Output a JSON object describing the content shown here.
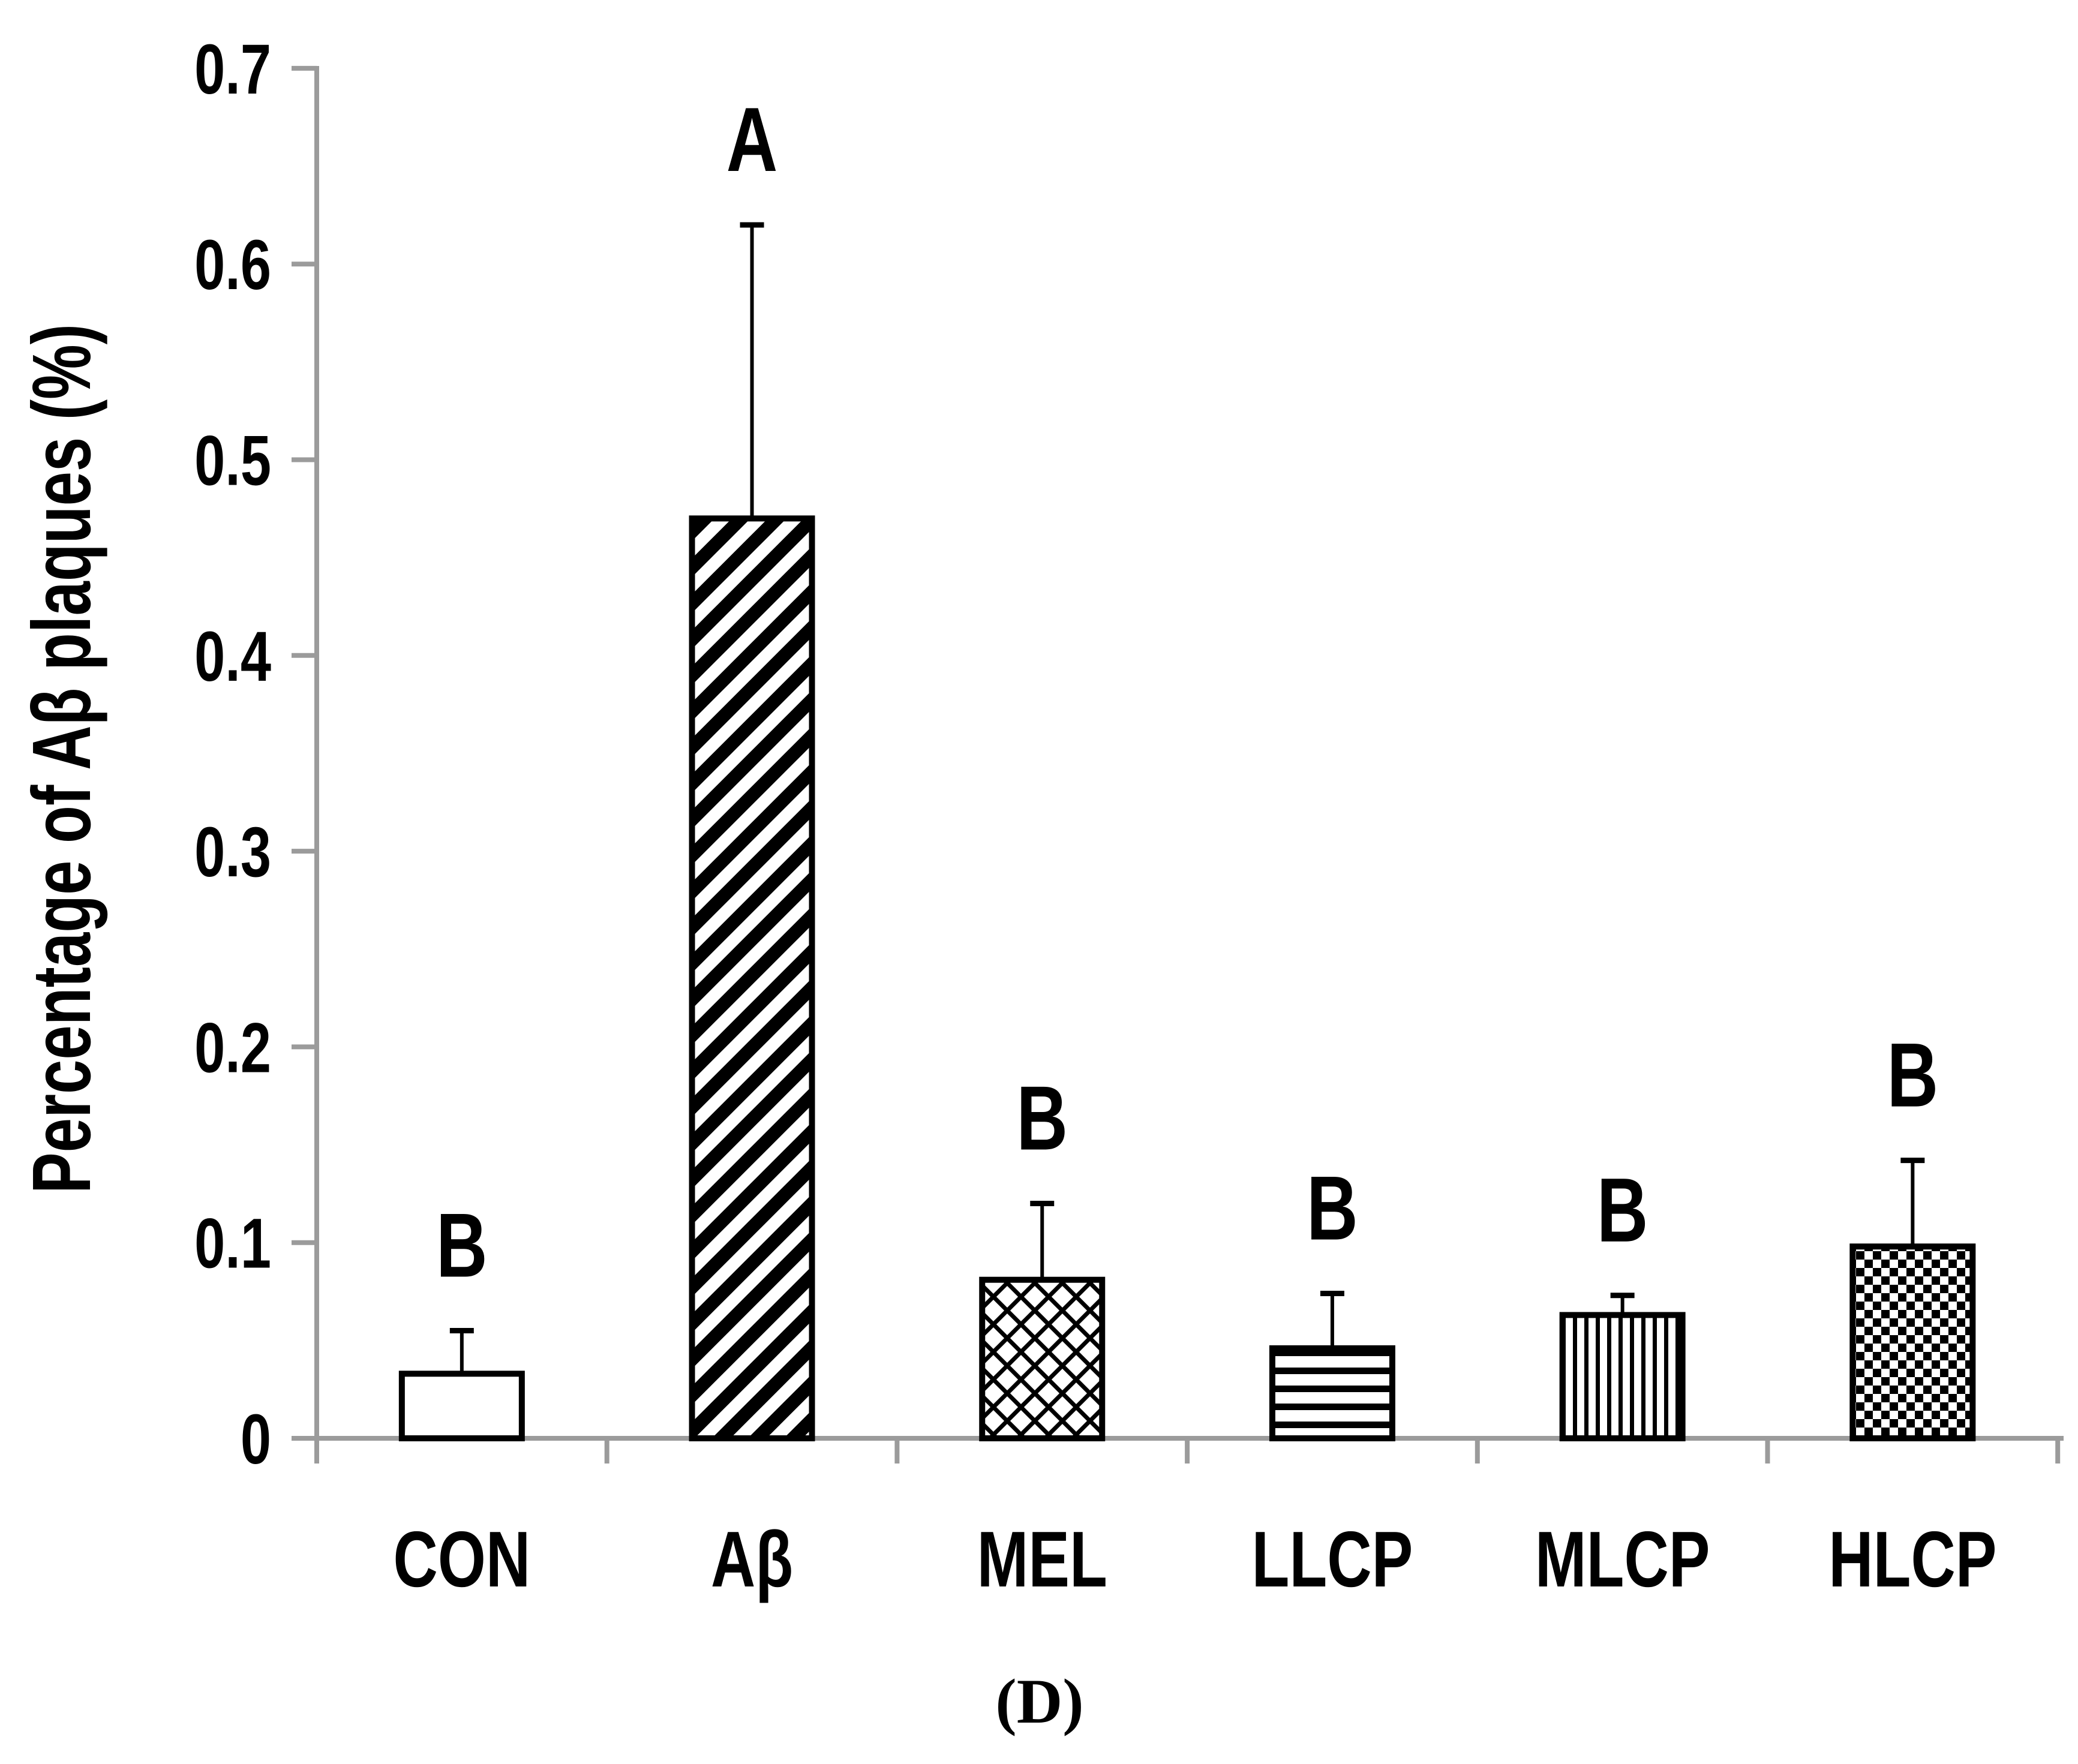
{
  "figure": {
    "panel_label": "(D)",
    "background": "#ffffff"
  },
  "chart_data": {
    "type": "bar",
    "title": "",
    "xlabel": "",
    "ylabel": "Percentage of Aβ plaques (%)",
    "ylim": [
      0,
      0.7
    ],
    "ytick_step": 0.1,
    "ytick_labels": [
      "0",
      "0.1",
      "0.2",
      "0.3",
      "0.4",
      "0.5",
      "0.6",
      "0.7"
    ],
    "grid": false,
    "legend_position": "none",
    "axis_color": "#9b9b9b",
    "bar_edge_color": "#000000",
    "bar_fill_base": "#ffffff",
    "categories": [
      "CON",
      "Aβ",
      "MEL",
      "LLCP",
      "MLCP",
      "HLCP"
    ],
    "values": [
      0.033,
      0.47,
      0.081,
      0.046,
      0.063,
      0.098
    ],
    "error_upper": [
      0.022,
      0.15,
      0.039,
      0.028,
      0.01,
      0.044
    ],
    "error_top_absolute": [
      0.055,
      0.62,
      0.12,
      0.074,
      0.073,
      0.142
    ],
    "sig_letters": [
      "B",
      "A",
      "B",
      "B",
      "B",
      "B"
    ],
    "bar_patterns": [
      "solid-white",
      "diagonal-stripes",
      "diamond-crosshatch",
      "horizontal-stripes",
      "vertical-stripes",
      "checkerboard"
    ]
  }
}
